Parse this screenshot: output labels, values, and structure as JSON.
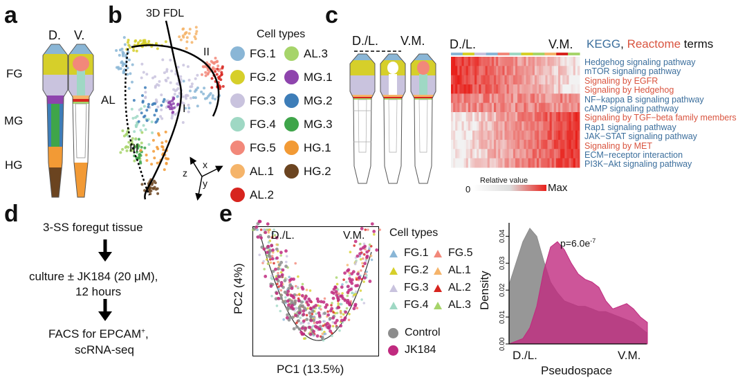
{
  "panels": {
    "a": "a",
    "b": "b",
    "c": "c",
    "d": "d",
    "e": "e"
  },
  "panel_a": {
    "dorsal": "D.",
    "ventral": "V.",
    "regions": {
      "fg": "FG",
      "mg": "MG",
      "hg": "HG",
      "al": "AL"
    },
    "colors": {
      "fg1": "#8ab6d6",
      "fg2": "#d6cf2a",
      "fg3": "#c9c3de",
      "fg4": "#9fd8c4",
      "fg5": "#f2887a",
      "al1": "#f5b46a",
      "al2": "#d7241e",
      "al3": "#a6d46a",
      "mg1": "#8e44ad",
      "mg2": "#3d7db8",
      "mg3": "#3fa54a",
      "hg1": "#f29a35",
      "hg2": "#6b4420"
    }
  },
  "panel_b": {
    "title": "3D FDL",
    "trajectories": [
      "I",
      "II",
      "III"
    ],
    "axes": {
      "x": "x",
      "y": "y",
      "z": "z"
    },
    "legend_title": "Cell types",
    "legend": [
      {
        "label": "FG.1",
        "color": "#8ab6d6"
      },
      {
        "label": "AL.3",
        "color": "#a6d46a"
      },
      {
        "label": "FG.2",
        "color": "#d6cf2a"
      },
      {
        "label": "MG.1",
        "color": "#8e44ad"
      },
      {
        "label": "FG.3",
        "color": "#c9c3de"
      },
      {
        "label": "MG.2",
        "color": "#3d7db8"
      },
      {
        "label": "FG.4",
        "color": "#9fd8c4"
      },
      {
        "label": "MG.3",
        "color": "#3fa54a"
      },
      {
        "label": "FG.5",
        "color": "#f2887a"
      },
      {
        "label": "HG.1",
        "color": "#f29a35"
      },
      {
        "label": "AL.1",
        "color": "#f5b46a"
      },
      {
        "label": "HG.2",
        "color": "#6b4420"
      },
      {
        "label": "AL.2",
        "color": "#d7241e"
      }
    ]
  },
  "panel_c": {
    "dl": "D./L.",
    "vm": "V.M.",
    "heat_dl": "D./L.",
    "heat_vm": "V.M.",
    "header": {
      "kegg": "KEGG",
      "sep": ", ",
      "reactome": "Reactome",
      "suffix": " terms"
    },
    "terms": [
      {
        "label": "Hedgehog signaling pathway",
        "src": "kegg"
      },
      {
        "label": "mTOR signaling pathway",
        "src": "kegg"
      },
      {
        "label": "Signaling by EGFR",
        "src": "react"
      },
      {
        "label": "Signaling by Hedgehog",
        "src": "react"
      },
      {
        "label": "NF−kappa B signaling pathway",
        "src": "kegg"
      },
      {
        "label": "cAMP signaling pathway",
        "src": "kegg"
      },
      {
        "label": "Signaling by TGF−beta family members",
        "src": "react"
      },
      {
        "label": "Rap1 signaling pathway",
        "src": "kegg"
      },
      {
        "label": "JAK−STAT signaling pathway",
        "src": "kegg"
      },
      {
        "label": "Signaling by MET",
        "src": "react"
      },
      {
        "label": "ECM−receptor interaction",
        "src": "kegg"
      },
      {
        "label": "PI3K−Akt signaling pathway",
        "src": "kegg"
      }
    ],
    "scale": {
      "title": "Relative value",
      "min": "0",
      "max": "Max"
    },
    "colors": {
      "low": "#f2f2f2",
      "high": "#e8201a"
    }
  },
  "panel_d": {
    "step1": "3-SS foregut tissue",
    "step2a": "culture ± JK184 (20 μM),",
    "step2b": "12 hours",
    "step3a": "FACS for EPCAM",
    "step3sup": "+",
    "step3b": ",",
    "step3c": "scRNA-seq"
  },
  "panel_e": {
    "pca": {
      "xlabel": "PC1 (13.5%)",
      "ylabel": "PC2 (4%)",
      "left": "D./L.",
      "right": "V.M."
    },
    "legend_title": "Cell types",
    "legend": [
      {
        "label": "FG.1",
        "color": "#8ab6d6",
        "shape": "tri"
      },
      {
        "label": "FG.5",
        "color": "#f2887a",
        "shape": "tri"
      },
      {
        "label": "FG.2",
        "color": "#d6cf2a",
        "shape": "tri"
      },
      {
        "label": "AL.1",
        "color": "#f5b46a",
        "shape": "tri"
      },
      {
        "label": "FG.3",
        "color": "#c9c3de",
        "shape": "tri"
      },
      {
        "label": "AL.2",
        "color": "#d7241e",
        "shape": "tri"
      },
      {
        "label": "FG.4",
        "color": "#9fd8c4",
        "shape": "tri"
      },
      {
        "label": "AL.3",
        "color": "#a6d46a",
        "shape": "tri"
      }
    ],
    "groups": [
      {
        "label": "Control",
        "color": "#8c8c8c"
      },
      {
        "label": "JK184",
        "color": "#c02a7f"
      }
    ],
    "density": {
      "pvalue_base": "p=6.0e",
      "pvalue_exp": "-7",
      "ylabel": "Density",
      "xlabel": "Pseudospace",
      "x_left": "D./L.",
      "x_right": "V.M."
    }
  },
  "chart_data": {
    "type": "area",
    "title": "",
    "xlabel": "Pseudospace",
    "ylabel": "Density",
    "x_categories": [
      "D./L.",
      "V.M."
    ],
    "ylim": [
      0,
      0.045
    ],
    "yticks": [
      0.0,
      0.01,
      0.02,
      0.03,
      0.04
    ],
    "x": [
      0.0,
      0.05,
      0.1,
      0.15,
      0.2,
      0.25,
      0.3,
      0.35,
      0.4,
      0.45,
      0.5,
      0.55,
      0.6,
      0.65,
      0.7,
      0.75,
      0.8,
      0.85,
      0.9,
      0.95,
      1.0
    ],
    "series": [
      {
        "name": "Control",
        "color": "#8c8c8c",
        "values": [
          0.022,
          0.03,
          0.038,
          0.043,
          0.04,
          0.031,
          0.023,
          0.019,
          0.016,
          0.015,
          0.014,
          0.014,
          0.013,
          0.012,
          0.012,
          0.011,
          0.01,
          0.009,
          0.008,
          0.006,
          0.004
        ]
      },
      {
        "name": "JK184",
        "color": "#c02a7f",
        "values": [
          0.0,
          0.001,
          0.002,
          0.006,
          0.014,
          0.027,
          0.036,
          0.038,
          0.035,
          0.03,
          0.026,
          0.024,
          0.023,
          0.021,
          0.016,
          0.013,
          0.014,
          0.015,
          0.013,
          0.01,
          0.008
        ]
      }
    ],
    "annotation": "p=6.0e-7"
  }
}
